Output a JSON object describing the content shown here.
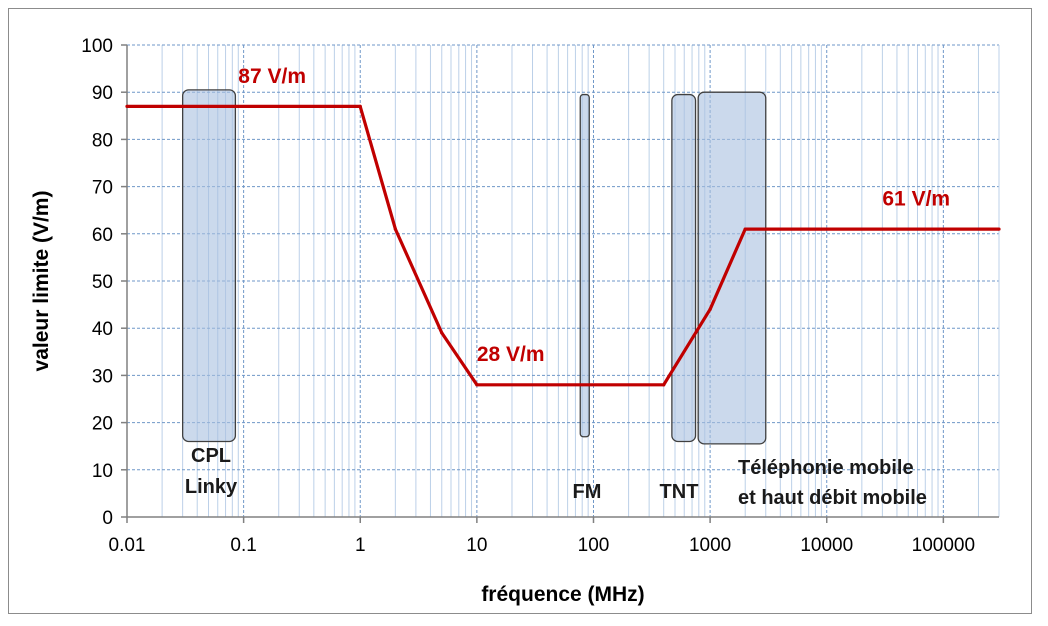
{
  "chart_data": {
    "type": "line",
    "title": "",
    "xlabel": "fréquence (MHz)",
    "ylabel": "valeur limite (V/m)",
    "x_scale": "log",
    "xlim": [
      0.01,
      300000
    ],
    "ylim": [
      0,
      100
    ],
    "grid": true,
    "x_ticks": [
      0.01,
      0.1,
      1,
      10,
      100,
      1000,
      10000,
      100000
    ],
    "x_tick_labels": [
      "0.01",
      "0.1",
      "1",
      "10",
      "100",
      "1000",
      "10000",
      "100000"
    ],
    "y_ticks": [
      0,
      10,
      20,
      30,
      40,
      50,
      60,
      70,
      80,
      90,
      100
    ],
    "y_tick_labels": [
      "0",
      "10",
      "20",
      "30",
      "40",
      "50",
      "60",
      "70",
      "80",
      "90",
      "100"
    ],
    "series": [
      {
        "color": "#c00000",
        "x": [
          0.01,
          1,
          2,
          5,
          10,
          400,
          1000,
          2000,
          300000
        ],
        "y": [
          87,
          87,
          61,
          39,
          28,
          28,
          44,
          61,
          61
        ]
      }
    ],
    "bands": [
      {
        "labels": [
          "CPL",
          "Linky"
        ],
        "x_range": [
          0.03,
          0.085
        ],
        "y_range": [
          16,
          90.5
        ]
      },
      {
        "labels": [
          "FM"
        ],
        "x_range": [
          77,
          92
        ],
        "y_range": [
          17,
          89.5
        ]
      },
      {
        "labels": [
          "TNT"
        ],
        "x_range": [
          470,
          750
        ],
        "y_range": [
          16,
          89.5
        ]
      },
      {
        "labels": [
          "Téléphonie mobile",
          "et haut débit mobile"
        ],
        "x_range": [
          790,
          3000
        ],
        "y_range": [
          15.5,
          90
        ]
      }
    ],
    "band_color": "#a8c0e0",
    "annotations": [
      {
        "text": "87 V/m",
        "x": 0.09,
        "y": 92
      },
      {
        "text": "28 V/m",
        "x": 10,
        "y": 33
      },
      {
        "text": "61 V/m",
        "x": 30000,
        "y": 66
      }
    ],
    "annotation_color": "#c00000"
  }
}
